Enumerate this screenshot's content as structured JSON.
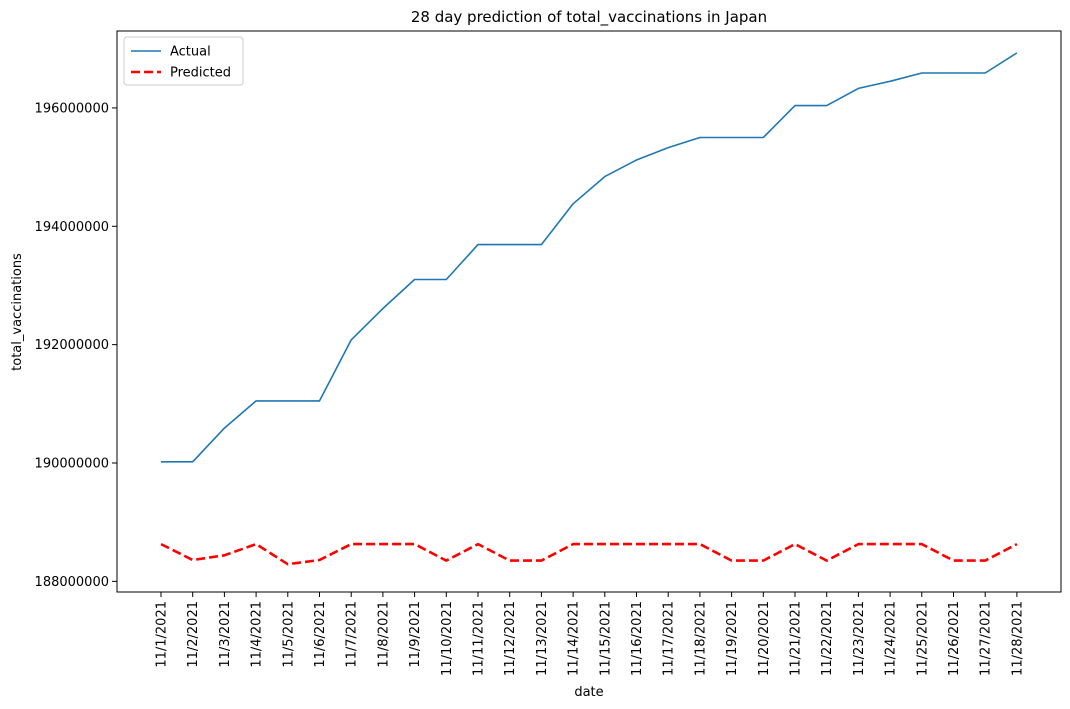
{
  "chart_data": {
    "type": "line",
    "title": "28 day prediction of total_vaccinations in Japan",
    "xlabel": "date",
    "ylabel": "total_vaccinations",
    "categories": [
      "11/1/2021",
      "11/2/2021",
      "11/3/2021",
      "11/4/2021",
      "11/5/2021",
      "11/6/2021",
      "11/7/2021",
      "11/8/2021",
      "11/9/2021",
      "11/10/2021",
      "11/11/2021",
      "11/12/2021",
      "11/13/2021",
      "11/14/2021",
      "11/15/2021",
      "11/16/2021",
      "11/17/2021",
      "11/18/2021",
      "11/19/2021",
      "11/20/2021",
      "11/21/2021",
      "11/22/2021",
      "11/23/2021",
      "11/24/2021",
      "11/25/2021",
      "11/26/2021",
      "11/27/2021",
      "11/28/2021"
    ],
    "ylim": [
      187820000,
      197300000
    ],
    "yticks": [
      188000000,
      190000000,
      192000000,
      194000000,
      196000000
    ],
    "ytick_labels": [
      "188000000",
      "190000000",
      "192000000",
      "194000000",
      "196000000"
    ],
    "legend_position": "top-left",
    "grid": false,
    "series": [
      {
        "name": "Actual",
        "color": "#1f77b4",
        "style": "solid",
        "values": [
          190020000,
          190020000,
          190590000,
          191050000,
          191050000,
          191050000,
          192080000,
          192610000,
          193100000,
          193100000,
          193690000,
          193690000,
          193690000,
          194380000,
          194840000,
          195120000,
          195330000,
          195500000,
          195500000,
          195500000,
          196040000,
          196040000,
          196330000,
          196450000,
          196590000,
          196590000,
          196590000,
          196930000
        ]
      },
      {
        "name": "Predicted",
        "color": "#ff0000",
        "style": "dashed",
        "values": [
          188630000,
          188360000,
          188440000,
          188630000,
          188290000,
          188360000,
          188630000,
          188630000,
          188630000,
          188350000,
          188630000,
          188350000,
          188350000,
          188630000,
          188630000,
          188630000,
          188630000,
          188630000,
          188350000,
          188350000,
          188630000,
          188350000,
          188630000,
          188630000,
          188630000,
          188350000,
          188350000,
          188630000
        ]
      }
    ]
  }
}
